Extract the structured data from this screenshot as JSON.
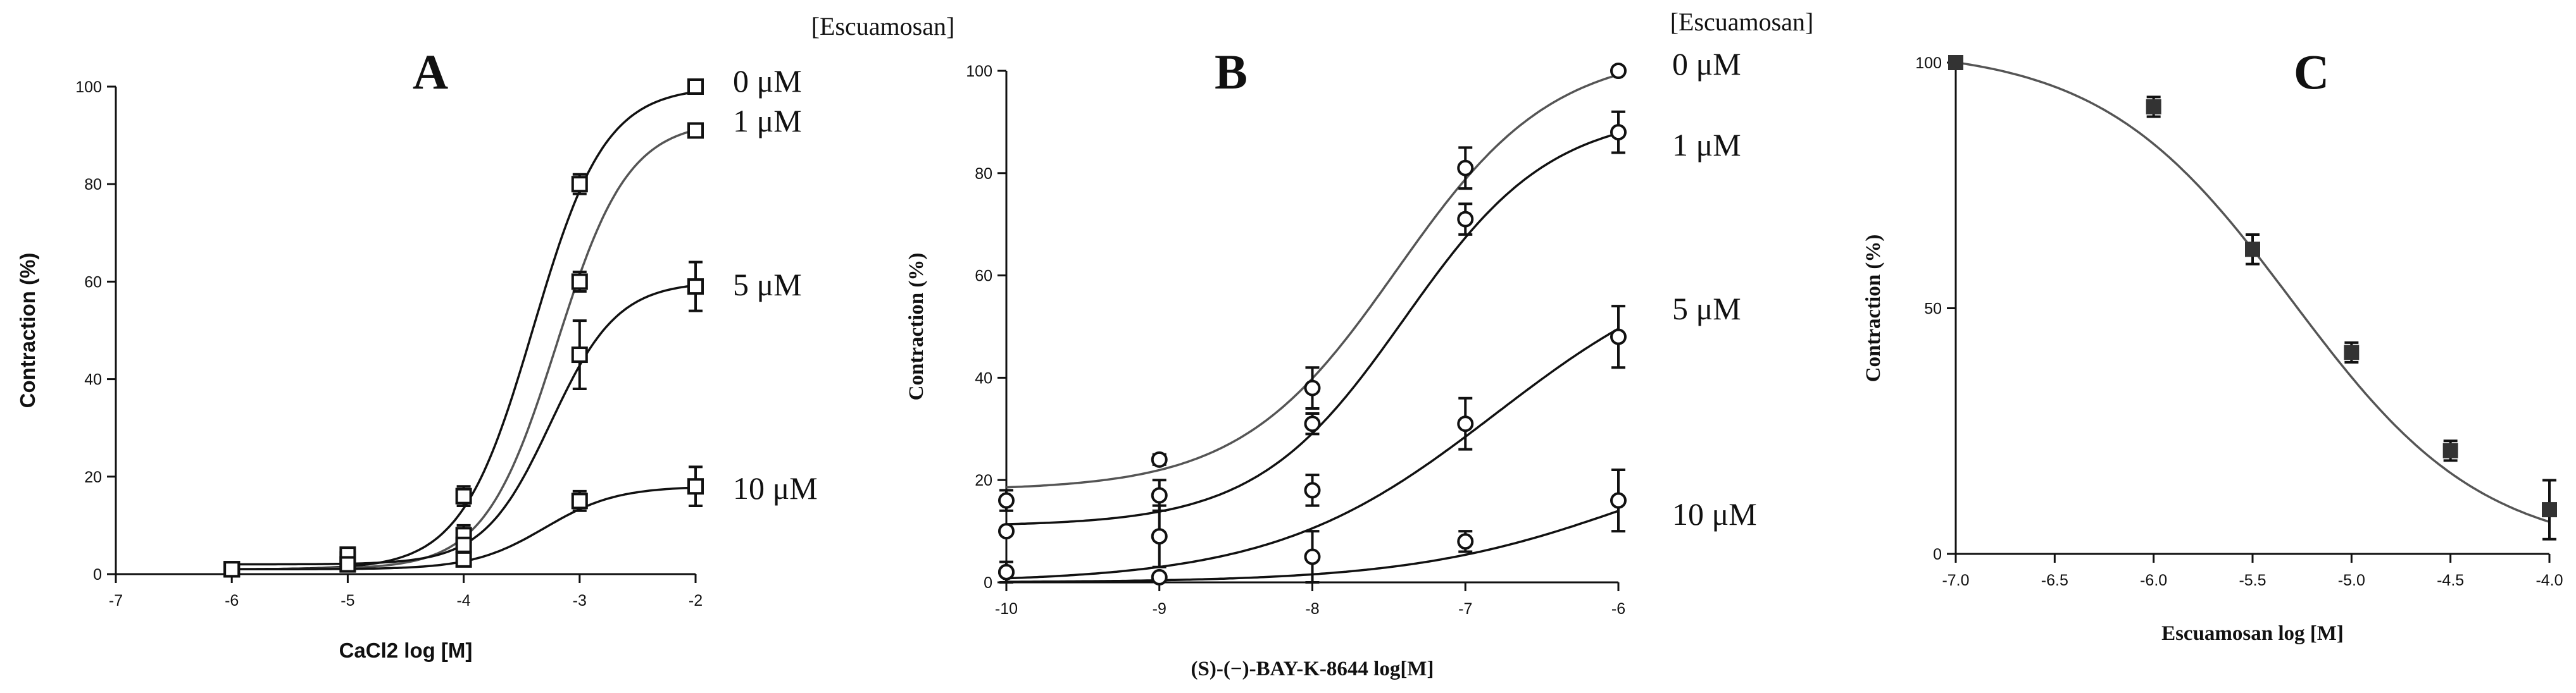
{
  "colors": {
    "ink": "#111111",
    "curve_gray": "#555555",
    "marker_dark": "#333333",
    "background": "#ffffff"
  },
  "chart_data": [
    {
      "id": "A",
      "type": "line",
      "panel_label": "A",
      "legend_title": "[Escuamosan]",
      "xlabel": "CaCl2 log [M]",
      "ylabel": "Contraction (%)",
      "xlim": [
        -7,
        -2
      ],
      "ylim": [
        0,
        100
      ],
      "xticks": [
        -7,
        -6,
        -5,
        -4,
        -3,
        -2
      ],
      "yticks": [
        0,
        20,
        40,
        60,
        80,
        100
      ],
      "marker": "open-square",
      "series": [
        {
          "name": "0 μM",
          "x": [
            -6,
            -5,
            -4,
            -3,
            -2
          ],
          "y": [
            1,
            3,
            16,
            80,
            100
          ],
          "err": [
            0,
            0,
            2,
            2,
            0
          ],
          "fit": {
            "bottom": 1,
            "top": 100,
            "logEC50": -3.4,
            "hill": 1.4
          }
        },
        {
          "name": "1 μM",
          "x": [
            -6,
            -5,
            -4,
            -3,
            -2
          ],
          "y": [
            1,
            4,
            8,
            60,
            91
          ],
          "err": [
            0,
            0,
            2,
            2,
            0
          ],
          "fit": {
            "bottom": 1,
            "top": 93,
            "logEC50": -3.2,
            "hill": 1.4
          }
        },
        {
          "name": "5 μM",
          "x": [
            -6,
            -5,
            -4,
            -3,
            -2
          ],
          "y": [
            1,
            2,
            6,
            45,
            59
          ],
          "err": [
            0,
            0,
            1,
            7,
            5
          ],
          "fit": {
            "bottom": 2,
            "top": 60,
            "logEC50": -3.25,
            "hill": 1.5
          }
        },
        {
          "name": "10 μM",
          "x": [
            -6,
            -5,
            -4,
            -3,
            -2
          ],
          "y": [
            1,
            2,
            3,
            15,
            18
          ],
          "err": [
            0,
            0,
            0,
            2,
            4
          ],
          "fit": {
            "bottom": 1,
            "top": 18,
            "logEC50": -3.3,
            "hill": 1.4
          }
        }
      ]
    },
    {
      "id": "B",
      "type": "line",
      "panel_label": "B",
      "legend_title": "[Escuamosan]",
      "xlabel": "(S)-(−)-BAY-K-8644 log[M]",
      "ylabel": "Contraction (%)",
      "xlim": [
        -10,
        -6
      ],
      "ylim": [
        0,
        100
      ],
      "xticks": [
        -10,
        -9,
        -8,
        -7,
        -6
      ],
      "yticks": [
        0,
        20,
        40,
        60,
        80,
        100
      ],
      "marker": "open-circle",
      "series": [
        {
          "name": "0 μM",
          "x": [
            -10,
            -9,
            -8,
            -7,
            -6
          ],
          "y": [
            16,
            24,
            38,
            81,
            100
          ],
          "err": [
            2,
            1,
            4,
            4,
            0
          ],
          "fit": {
            "bottom": 18,
            "top": 104,
            "logEC50": -7.45,
            "hill": 0.85
          }
        },
        {
          "name": "1 μM",
          "x": [
            -10,
            -9,
            -8,
            -7,
            -6
          ],
          "y": [
            10,
            17,
            31,
            71,
            88
          ],
          "err": [
            0,
            3,
            2,
            3,
            4
          ],
          "fit": {
            "bottom": 11,
            "top": 92,
            "logEC50": -7.4,
            "hill": 0.9
          }
        },
        {
          "name": "5 μM",
          "x": [
            -10,
            -9,
            -8,
            -7,
            -6
          ],
          "y": [
            2,
            9,
            18,
            31,
            48
          ],
          "err": [
            2,
            6,
            3,
            5,
            6
          ],
          "fit": {
            "bottom": 0,
            "top": 66,
            "logEC50": -6.8,
            "hill": 0.6
          }
        },
        {
          "name": "10 μM",
          "x": [
            -10,
            -9,
            -8,
            -7,
            -6
          ],
          "y": [
            2,
            1,
            5,
            8,
            16
          ],
          "err": [
            0,
            0,
            5,
            2,
            6
          ],
          "fit": {
            "bottom": 0,
            "top": 30,
            "logEC50": -5.9,
            "hill": 0.6
          }
        }
      ]
    },
    {
      "id": "C",
      "type": "line",
      "panel_label": "C",
      "xlabel": "Escuamosan log [M]",
      "ylabel": "Contraction (%)",
      "xlim": [
        -7,
        -4
      ],
      "ylim": [
        0,
        100
      ],
      "xticks": [
        -7.0,
        -6.5,
        -6.0,
        -5.5,
        -5.0,
        -4.5,
        -4.0
      ],
      "xtick_labels": [
        "-7.0",
        "-6.5",
        "-6.0",
        "-5.5",
        "-5.0",
        "-4.5",
        "-4.0"
      ],
      "yticks": [
        0,
        50,
        100
      ],
      "marker": "filled-square",
      "series": [
        {
          "name": "Escuamosan",
          "x": [
            -7,
            -6,
            -5.5,
            -5,
            -4.5,
            -4
          ],
          "y": [
            100,
            91,
            62,
            41,
            21,
            9
          ],
          "err": [
            0,
            2,
            3,
            2,
            2,
            6
          ],
          "fit": {
            "bottom": 0,
            "top": 103,
            "logEC50": -5.3,
            "hill": -0.9
          }
        }
      ]
    }
  ]
}
